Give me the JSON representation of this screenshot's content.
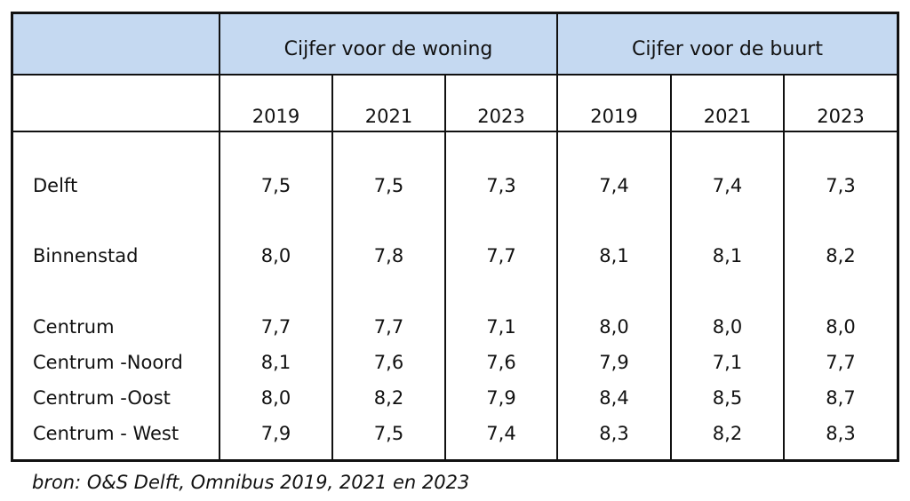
{
  "table": {
    "groups": [
      "Cijfer voor de woning",
      "Cijfer voor de buurt"
    ],
    "years": [
      "2019",
      "2021",
      "2023",
      "2019",
      "2021",
      "2023"
    ],
    "rows": [
      {
        "label": "Delft",
        "values": [
          "7,5",
          "7,5",
          "7,3",
          "7,4",
          "7,4",
          "7,3"
        ]
      },
      {
        "label": "Binnenstad",
        "values": [
          "8,0",
          "7,8",
          "7,7",
          "8,1",
          "8,1",
          "8,2"
        ]
      },
      {
        "label": "Centrum",
        "values": [
          "7,7",
          "7,7",
          "7,1",
          "8,0",
          "8,0",
          "8,0"
        ]
      },
      {
        "label": "Centrum -Noord",
        "values": [
          "8,1",
          "7,6",
          "7,6",
          "7,9",
          "7,1",
          "7,7"
        ]
      },
      {
        "label": "Centrum -Oost",
        "values": [
          "8,0",
          "8,2",
          "7,9",
          "8,4",
          "8,5",
          "8,7"
        ]
      },
      {
        "label": "Centrum - West",
        "values": [
          "7,9",
          "7,5",
          "7,4",
          "8,3",
          "8,2",
          "8,3"
        ]
      }
    ],
    "header_color": "#c5d9f1"
  },
  "source": "bron: O&S Delft, Omnibus 2019, 2021 en 2023"
}
